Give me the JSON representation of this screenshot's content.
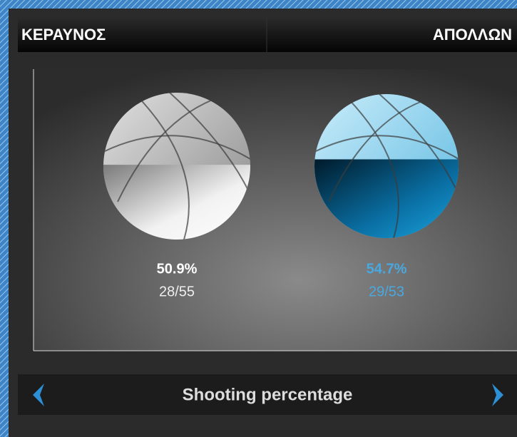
{
  "header": {
    "home": "ΚΕΡΑΥΝΟΣ",
    "away": "ΑΠΟΛΛΩΝ"
  },
  "teams": [
    {
      "percentage": {
        "value": 50.9,
        "label": "50.9%"
      },
      "made_attempted": "28/55"
    },
    {
      "percentage": {
        "value": 54.7,
        "label": "54.7%"
      },
      "made_attempted": "29/53"
    }
  ],
  "footer": {
    "title": "Shooting percentage"
  }
}
